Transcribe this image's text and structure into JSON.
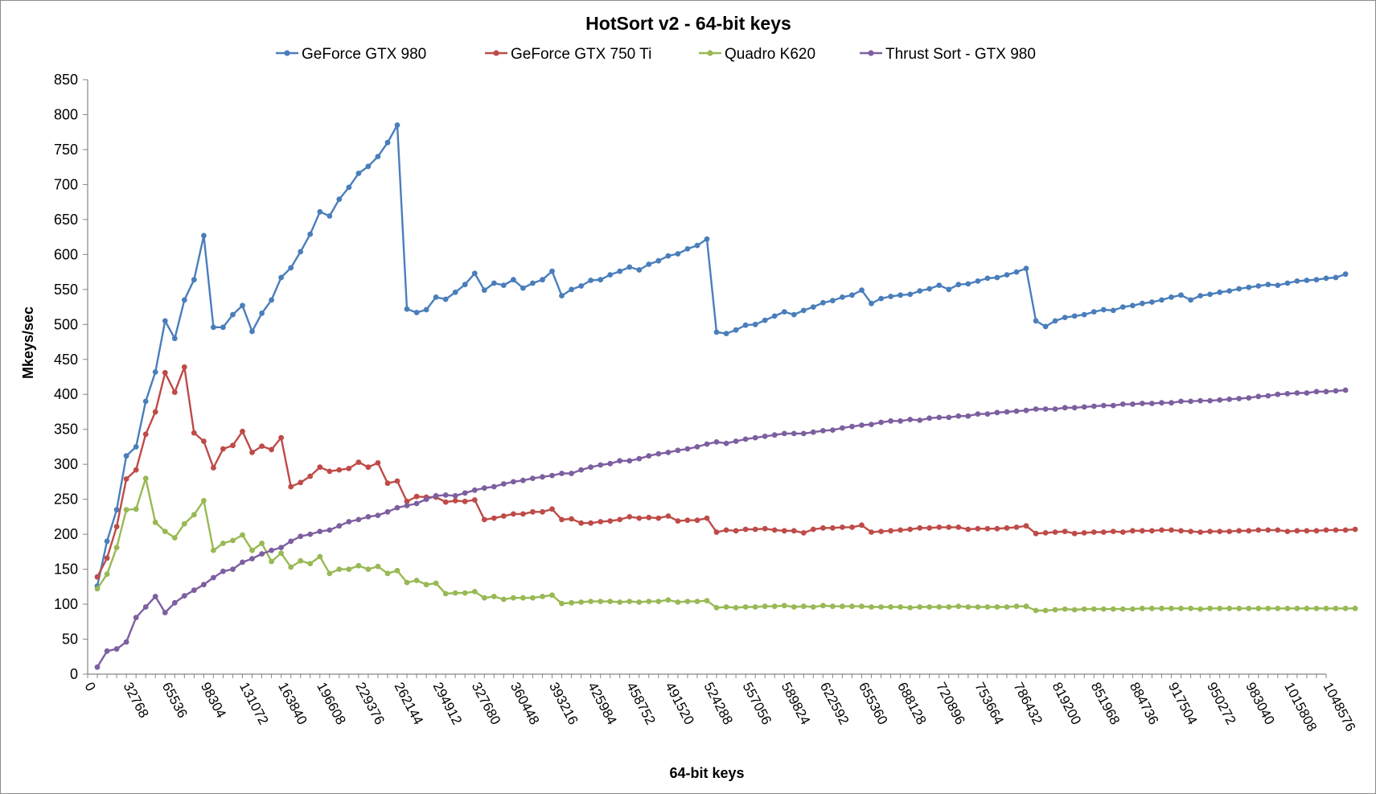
{
  "chart_data": {
    "type": "line",
    "title": "HotSort v2 - 64-bit keys",
    "xlabel": "64-bit keys",
    "ylabel": "Mkeys/sec",
    "xlim": [
      0,
      1048576
    ],
    "ylim": [
      0,
      850
    ],
    "y_ticks": [
      0,
      50,
      100,
      150,
      200,
      250,
      300,
      350,
      400,
      450,
      500,
      550,
      600,
      650,
      700,
      750,
      800,
      850
    ],
    "x_ticks": [
      0,
      32768,
      65536,
      98304,
      131072,
      163840,
      196608,
      229376,
      262144,
      294912,
      327680,
      360448,
      393216,
      425984,
      458752,
      491520,
      524288,
      557056,
      589824,
      622592,
      655360,
      688128,
      720896,
      753664,
      786432,
      819200,
      851968,
      884736,
      917504,
      950272,
      983040,
      1015808,
      1048576
    ],
    "x_step": 8192,
    "x_start": 8192,
    "grid": false,
    "legend_position": "top",
    "series": [
      {
        "name": "GeForce GTX 980",
        "color": "#4a7ebb",
        "values": [
          126,
          190,
          235,
          312,
          325,
          390,
          432,
          505,
          480,
          535,
          564,
          627,
          496,
          496,
          514,
          527,
          490,
          516,
          535,
          567,
          581,
          604,
          629,
          661,
          655,
          679,
          696,
          716,
          726,
          740,
          760,
          785,
          522,
          517,
          521,
          539,
          536,
          546,
          557,
          573,
          549,
          559,
          556,
          564,
          552,
          559,
          564,
          576,
          541,
          550,
          555,
          563,
          564,
          571,
          576,
          582,
          578,
          586,
          591,
          598,
          601,
          608,
          613,
          622,
          489,
          487,
          492,
          499,
          500,
          506,
          512,
          518,
          514,
          520,
          525,
          531,
          534,
          539,
          542,
          549,
          530,
          537,
          540,
          542,
          543,
          548,
          551,
          556,
          550,
          557,
          558,
          562,
          566,
          567,
          571,
          575,
          580,
          505,
          497,
          505,
          510,
          512,
          514,
          518,
          521,
          520,
          525,
          527,
          530,
          532,
          535,
          539,
          542,
          535,
          541,
          543,
          546,
          548,
          551,
          553,
          555,
          557,
          556,
          559,
          562,
          563,
          564,
          566,
          567,
          572
        ]
      },
      {
        "name": "GeForce GTX 750 Ti",
        "color": "#be4b48",
        "values": [
          139,
          166,
          211,
          279,
          292,
          343,
          375,
          431,
          403,
          439,
          345,
          333,
          295,
          322,
          327,
          347,
          317,
          326,
          321,
          338,
          268,
          274,
          283,
          296,
          290,
          292,
          294,
          303,
          296,
          302,
          273,
          276,
          247,
          254,
          253,
          253,
          246,
          248,
          247,
          249,
          221,
          223,
          226,
          229,
          229,
          232,
          232,
          236,
          221,
          222,
          216,
          216,
          218,
          219,
          221,
          225,
          223,
          224,
          223,
          226,
          219,
          220,
          220,
          223,
          203,
          206,
          205,
          207,
          207,
          208,
          206,
          205,
          205,
          202,
          207,
          209,
          209,
          210,
          210,
          213,
          203,
          204,
          205,
          206,
          207,
          209,
          209,
          210,
          210,
          210,
          207,
          208,
          208,
          208,
          209,
          210,
          212,
          201,
          202,
          203,
          204,
          201,
          202,
          203,
          203,
          204,
          203,
          205,
          205,
          205,
          206,
          206,
          205,
          204,
          203,
          204,
          204,
          204,
          205,
          205,
          206,
          206,
          206,
          204,
          205,
          205,
          205,
          206,
          206,
          206,
          207
        ]
      },
      {
        "name": "Quadro K620",
        "color": "#98b954",
        "values": [
          122,
          143,
          181,
          235,
          236,
          280,
          217,
          204,
          195,
          215,
          228,
          248,
          177,
          187,
          191,
          199,
          177,
          187,
          161,
          173,
          153,
          162,
          158,
          168,
          144,
          150,
          150,
          155,
          150,
          154,
          144,
          148,
          131,
          134,
          128,
          130,
          115,
          116,
          116,
          118,
          109,
          111,
          107,
          109,
          109,
          109,
          111,
          113,
          101,
          102,
          103,
          104,
          104,
          104,
          103,
          104,
          103,
          104,
          104,
          106,
          103,
          104,
          104,
          105,
          95,
          96,
          95,
          96,
          96,
          97,
          97,
          98,
          96,
          97,
          96,
          98,
          97,
          97,
          97,
          97,
          96,
          96,
          96,
          96,
          95,
          96,
          96,
          96,
          96,
          97,
          96,
          96,
          96,
          96,
          96,
          97,
          97,
          91,
          91,
          92,
          93,
          92,
          93,
          93,
          93,
          93,
          93,
          93,
          94,
          94,
          94,
          94,
          94,
          94,
          93,
          94,
          94,
          94,
          94,
          94,
          94,
          94,
          94,
          94,
          94,
          94,
          94,
          94,
          94,
          94,
          94
        ]
      },
      {
        "name": "Thrust Sort - GTX 980",
        "color": "#7d5fa0",
        "values": [
          10,
          33,
          36,
          46,
          81,
          96,
          111,
          88,
          102,
          112,
          120,
          128,
          138,
          147,
          150,
          160,
          165,
          172,
          177,
          181,
          190,
          197,
          200,
          204,
          206,
          212,
          218,
          221,
          225,
          227,
          232,
          238,
          241,
          244,
          250,
          255,
          256,
          255,
          259,
          263,
          266,
          268,
          272,
          275,
          277,
          280,
          282,
          284,
          287,
          287,
          292,
          296,
          299,
          301,
          305,
          305,
          308,
          312,
          315,
          317,
          320,
          322,
          325,
          329,
          332,
          330,
          333,
          336,
          338,
          340,
          342,
          344,
          344,
          344,
          346,
          348,
          349,
          352,
          354,
          356,
          357,
          360,
          362,
          362,
          364,
          363,
          366,
          367,
          367,
          369,
          369,
          372,
          372,
          374,
          375,
          376,
          377,
          379,
          379,
          379,
          381,
          381,
          382,
          383,
          384,
          384,
          386,
          386,
          387,
          387,
          388,
          388,
          390,
          390,
          391,
          391,
          392,
          393,
          394,
          395,
          397,
          398,
          400,
          401,
          402,
          402,
          404,
          404,
          405,
          406
        ]
      }
    ]
  }
}
